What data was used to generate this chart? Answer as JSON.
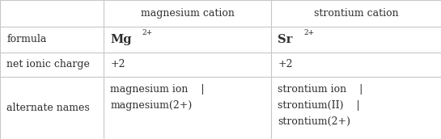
{
  "background_color": "#ffffff",
  "border_color": "#c8c8c8",
  "text_color": "#2e2e2e",
  "col_headers": [
    "",
    "magnesium cation",
    "strontium cation"
  ],
  "row_labels": [
    "formula",
    "net ionic charge",
    "alternate names"
  ],
  "font_size": 9.0,
  "superscript_size": 6.5,
  "col_boundaries": [
    0.0,
    0.235,
    0.615,
    1.0
  ],
  "row_boundaries": [
    1.0,
    0.81,
    0.625,
    0.445,
    0.0
  ],
  "mg_formula_base": "Mg",
  "mg_formula_sup": "2+",
  "sr_formula_base": "Sr",
  "sr_formula_sup": "2+",
  "charge_val": "+2",
  "mg_alt_names": [
    "magnesium ion    |",
    "magnesium(2+)"
  ],
  "sr_alt_names": [
    "strontium ion    |",
    "strontium(II)    |",
    "strontium(2+)"
  ]
}
